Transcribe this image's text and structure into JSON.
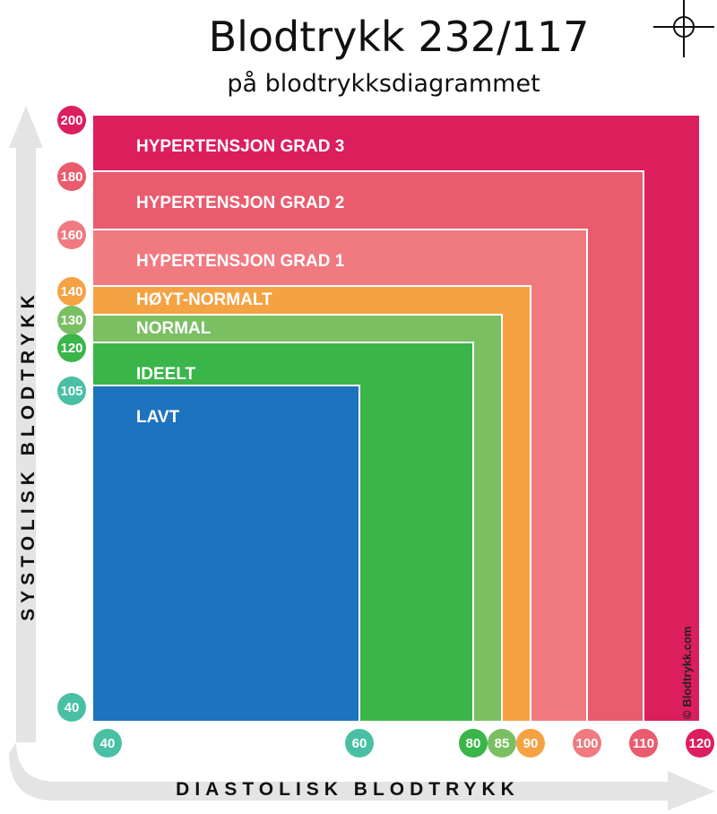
{
  "chart_data": {
    "type": "area",
    "title": "Blodtrykk 232/117",
    "subtitle": "på blodtrykksdiagrammet",
    "xlabel": "DIASTOLISK BLODTRYKK",
    "ylabel": "SYSTOLISK BLODTRYKK",
    "x_ticks": [
      {
        "value": 40,
        "label": "40",
        "color": "#49c0a4"
      },
      {
        "value": 60,
        "label": "60",
        "color": "#49c0a4"
      },
      {
        "value": 80,
        "label": "80",
        "color": "#3ab54a"
      },
      {
        "value": 85,
        "label": "85",
        "color": "#7bbf63"
      },
      {
        "value": 90,
        "label": "90",
        "color": "#f5a243"
      },
      {
        "value": 100,
        "label": "100",
        "color": "#f07a80"
      },
      {
        "value": 110,
        "label": "110",
        "color": "#ea5b6e"
      },
      {
        "value": 120,
        "label": "120",
        "color": "#dc1e5c"
      }
    ],
    "y_ticks": [
      {
        "value": 40,
        "label": "40",
        "color": "#49c0a4"
      },
      {
        "value": 105,
        "label": "105",
        "color": "#49c0a4"
      },
      {
        "value": 120,
        "label": "120",
        "color": "#3ab54a"
      },
      {
        "value": 130,
        "label": "130",
        "color": "#7bbf63"
      },
      {
        "value": 140,
        "label": "140",
        "color": "#f5a243"
      },
      {
        "value": 160,
        "label": "160",
        "color": "#f07a80"
      },
      {
        "value": 180,
        "label": "180",
        "color": "#ea5b6e"
      },
      {
        "value": 200,
        "label": "200",
        "color": "#dc1e5c"
      }
    ],
    "zones": [
      {
        "name": "HYPERTENSJON GRAD 3",
        "diastolic_max": 120,
        "systolic_max": 200,
        "color": "#dc1e5c"
      },
      {
        "name": "HYPERTENSJON GRAD 2",
        "diastolic_max": 110,
        "systolic_max": 180,
        "color": "#ea5b6e"
      },
      {
        "name": "HYPERTENSJON GRAD 1",
        "diastolic_max": 100,
        "systolic_max": 160,
        "color": "#f07a80"
      },
      {
        "name": "HØYT-NORMALT",
        "diastolic_max": 90,
        "systolic_max": 140,
        "color": "#f5a243"
      },
      {
        "name": "NORMAL",
        "diastolic_max": 85,
        "systolic_max": 130,
        "color": "#7bbf63"
      },
      {
        "name": "IDEELT",
        "diastolic_max": 80,
        "systolic_max": 120,
        "color": "#3ab54a"
      },
      {
        "name": "LAVT",
        "diastolic_max": 60,
        "systolic_max": 105,
        "color": "#1e73be"
      }
    ],
    "x_min": 40,
    "y_min": 40,
    "credit": "© Blodtrykk.com"
  }
}
